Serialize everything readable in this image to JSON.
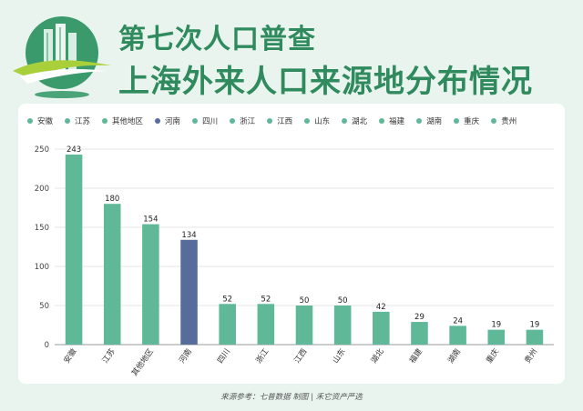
{
  "header": {
    "title_line1": "第七次人口普查",
    "title_line2": "上海外来人口来源地分布情况"
  },
  "source": "来源参考：七普数据 制图 | 禾它资产严选",
  "colors": {
    "green_bar": "#5fb897",
    "blue_bar": "#566c9a",
    "accent": "#2f8a5e",
    "logo_green": "#3a9a6c"
  },
  "chart_data": {
    "type": "bar",
    "title": "",
    "xlabel": "",
    "ylabel": "",
    "categories": [
      "安徽",
      "江苏",
      "其他地区",
      "河南",
      "四川",
      "浙江",
      "江西",
      "山东",
      "湖北",
      "福建",
      "湖南",
      "重庆",
      "贵州"
    ],
    "values": [
      243,
      180,
      154,
      134,
      52,
      52,
      50,
      50,
      42,
      29,
      24,
      19,
      19
    ],
    "bar_colors": [
      "#5fb897",
      "#5fb897",
      "#5fb897",
      "#566c9a",
      "#5fb897",
      "#5fb897",
      "#5fb897",
      "#5fb897",
      "#5fb897",
      "#5fb897",
      "#5fb897",
      "#5fb897",
      "#5fb897"
    ],
    "yticks": [
      0,
      50,
      100,
      150,
      200,
      250
    ],
    "ylim": [
      0,
      250
    ],
    "grid": true,
    "legend": "top",
    "data_labels": true
  }
}
